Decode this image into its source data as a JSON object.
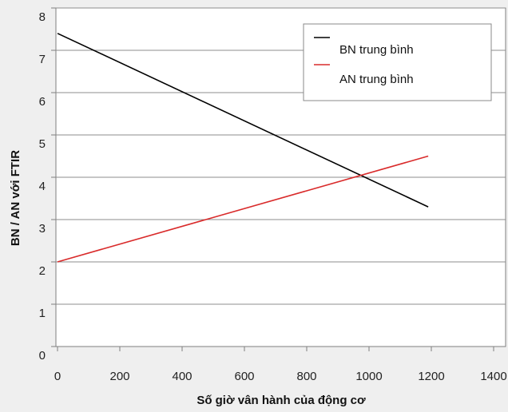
{
  "chart_data": {
    "type": "line",
    "title": "",
    "xlabel": "Số giờ vân hành của động cơ",
    "ylabel": "BN  / AN với FTIR",
    "xlim": [
      0,
      1400
    ],
    "ylim": [
      0,
      8
    ],
    "x_ticks": [
      "0",
      "200",
      "400",
      "600",
      "800",
      "1000",
      "1200",
      "1400"
    ],
    "y_ticks": [
      "0",
      "1",
      "2",
      "3",
      "4",
      "5",
      "6",
      "7",
      "8"
    ],
    "grid": "horizontal",
    "legend_position": "top-right",
    "series": [
      {
        "name": "BN trung bình",
        "color": "#000000",
        "points": [
          [
            0,
            7.4
          ],
          [
            1190,
            3.3
          ]
        ]
      },
      {
        "name": "AN trung bình",
        "color": "#d92b2b",
        "points": [
          [
            0,
            2.0
          ],
          [
            1190,
            4.5
          ]
        ]
      }
    ]
  }
}
